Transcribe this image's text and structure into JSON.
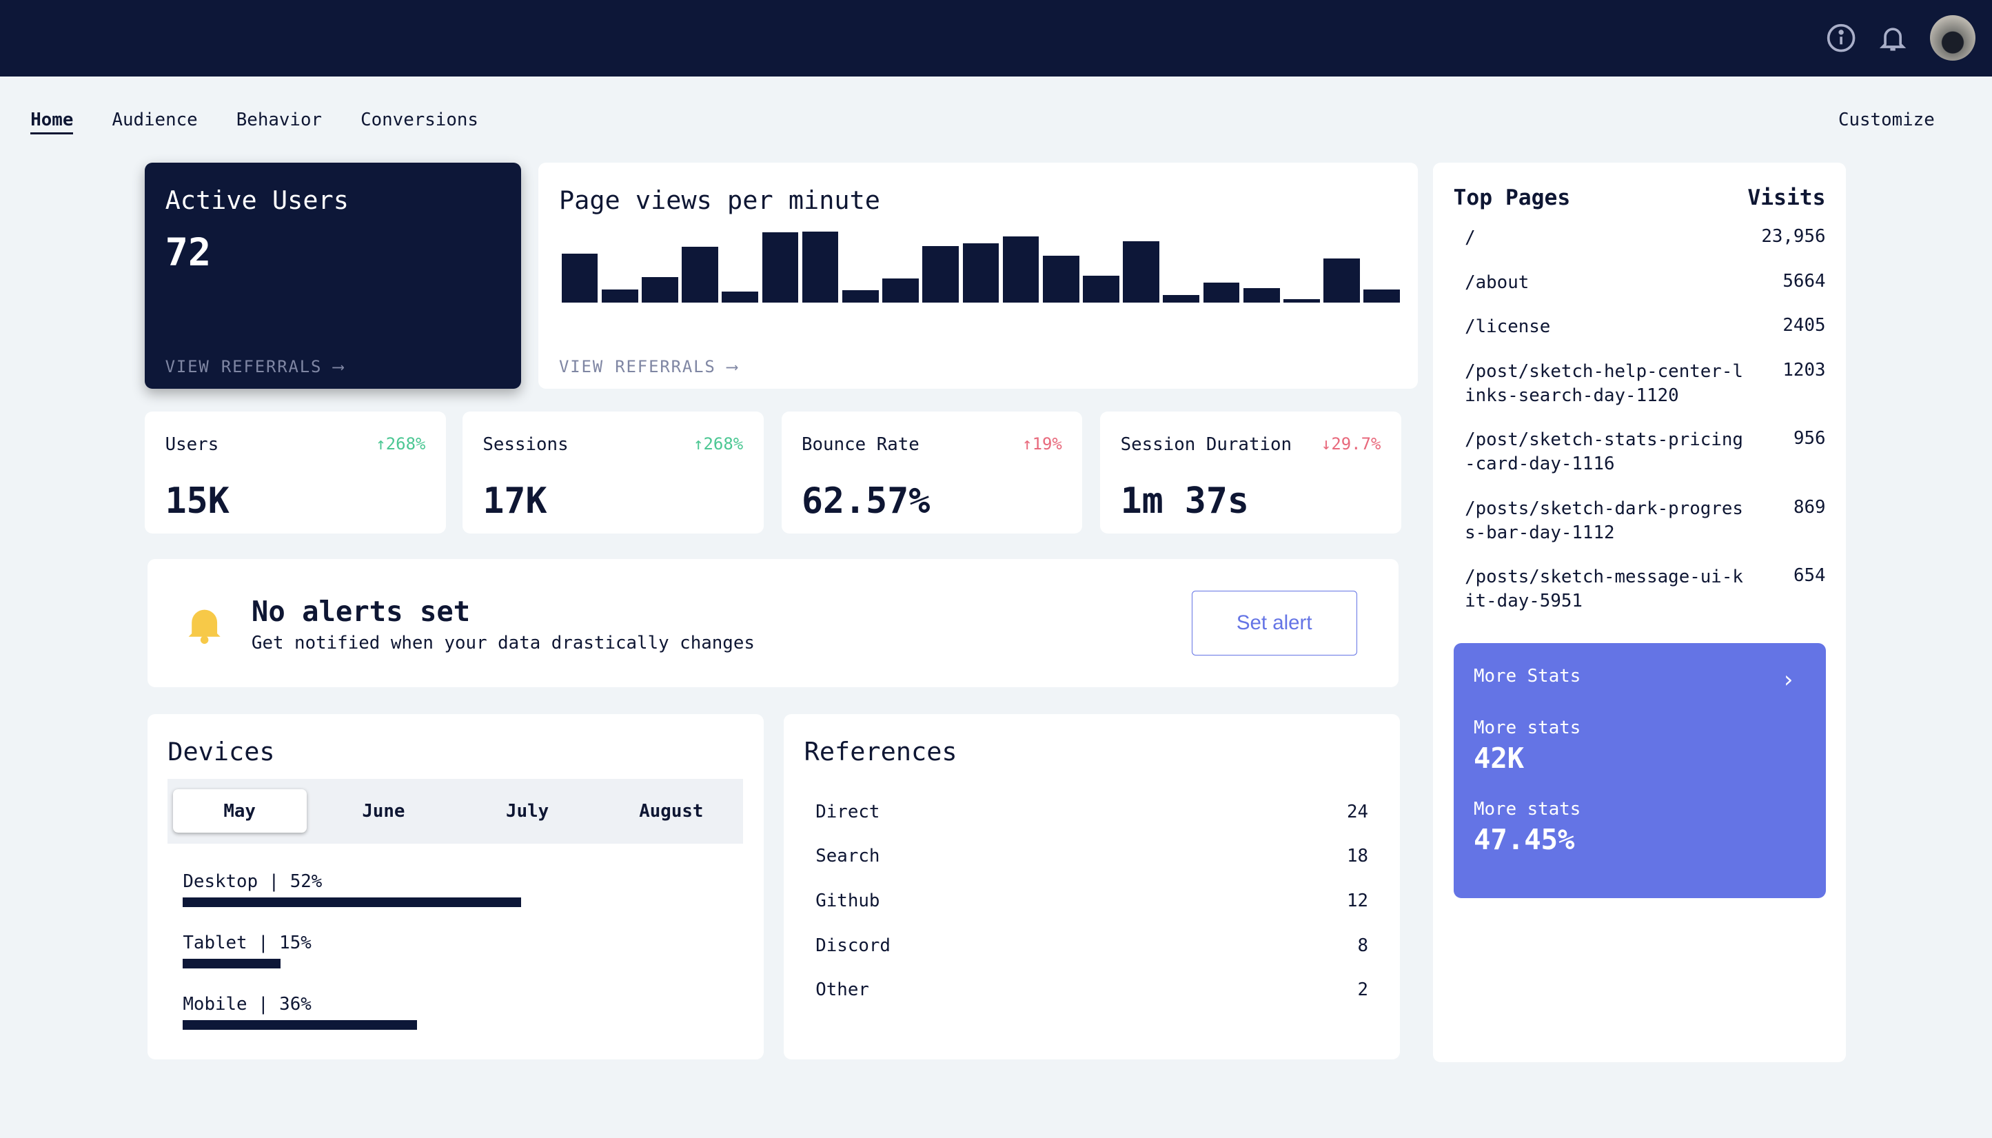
{
  "header": {
    "icons": [
      "info-icon",
      "bell-icon",
      "avatar"
    ]
  },
  "nav": {
    "tabs": [
      "Home",
      "Audience",
      "Behavior",
      "Conversions"
    ],
    "active": "Home",
    "customize": "Customize"
  },
  "active_users": {
    "title": "Active Users",
    "value": "72",
    "link": "VIEW REFERRALS"
  },
  "page_views": {
    "title": "Page views per minute",
    "link": "VIEW REFERRALS",
    "values": [
      212,
      57,
      111,
      242,
      48,
      306,
      309,
      54,
      105,
      246,
      258,
      288,
      204,
      117,
      267,
      33,
      87,
      63,
      15,
      192,
      57
    ]
  },
  "stats": [
    {
      "label": "Users",
      "change": "268%",
      "dir": "up",
      "value": "15K"
    },
    {
      "label": "Sessions",
      "change": "268%",
      "dir": "up",
      "value": "17K"
    },
    {
      "label": "Bounce Rate",
      "change": "19%",
      "dir": "up-bad",
      "value": "62.57%"
    },
    {
      "label": "Session Duration",
      "change": "29.7%",
      "dir": "down",
      "value": "1m 37s"
    }
  ],
  "alerts": {
    "title": "No alerts set",
    "subtitle": "Get notified when your data drastically changes",
    "button": "Set alert"
  },
  "devices": {
    "title": "Devices",
    "months": [
      "May",
      "June",
      "July",
      "August"
    ],
    "selected": "May",
    "items": [
      {
        "label": "Desktop | 52%",
        "pct": 52
      },
      {
        "label": "Tablet | 15%",
        "pct": 15
      },
      {
        "label": "Mobile | 36%",
        "pct": 36
      }
    ]
  },
  "references": {
    "title": "References",
    "items": [
      {
        "name": "Direct",
        "count": "24"
      },
      {
        "name": "Search",
        "count": "18"
      },
      {
        "name": "Github",
        "count": "12"
      },
      {
        "name": "Discord",
        "count": "8"
      },
      {
        "name": "Other",
        "count": "2"
      }
    ]
  },
  "top_pages": {
    "title": "Top Pages",
    "visits_label": "Visits",
    "items": [
      {
        "page": "/",
        "visits": "23,956"
      },
      {
        "page": "/about",
        "visits": "5664"
      },
      {
        "page": "/license",
        "visits": "2405"
      },
      {
        "page": "/post/sketch-help-center-links-search-day-1120",
        "visits": "1203"
      },
      {
        "page": "/post/sketch-stats-pricing-card-day-1116",
        "visits": "956"
      },
      {
        "page": "/posts/sketch-dark-progress-bar-day-1112",
        "visits": "869"
      },
      {
        "page": "/posts/sketch-message-ui-kit-day-5951",
        "visits": "654"
      }
    ]
  },
  "more_stats": {
    "title": "More Stats",
    "items": [
      {
        "label": "More stats",
        "value": "42K"
      },
      {
        "label": "More stats",
        "value": "47.45%"
      }
    ]
  },
  "colors": {
    "navy": "#0d1738",
    "accent": "#6474e5",
    "up": "#4cc793",
    "down": "#e8697c",
    "alert": "#f7c948"
  }
}
